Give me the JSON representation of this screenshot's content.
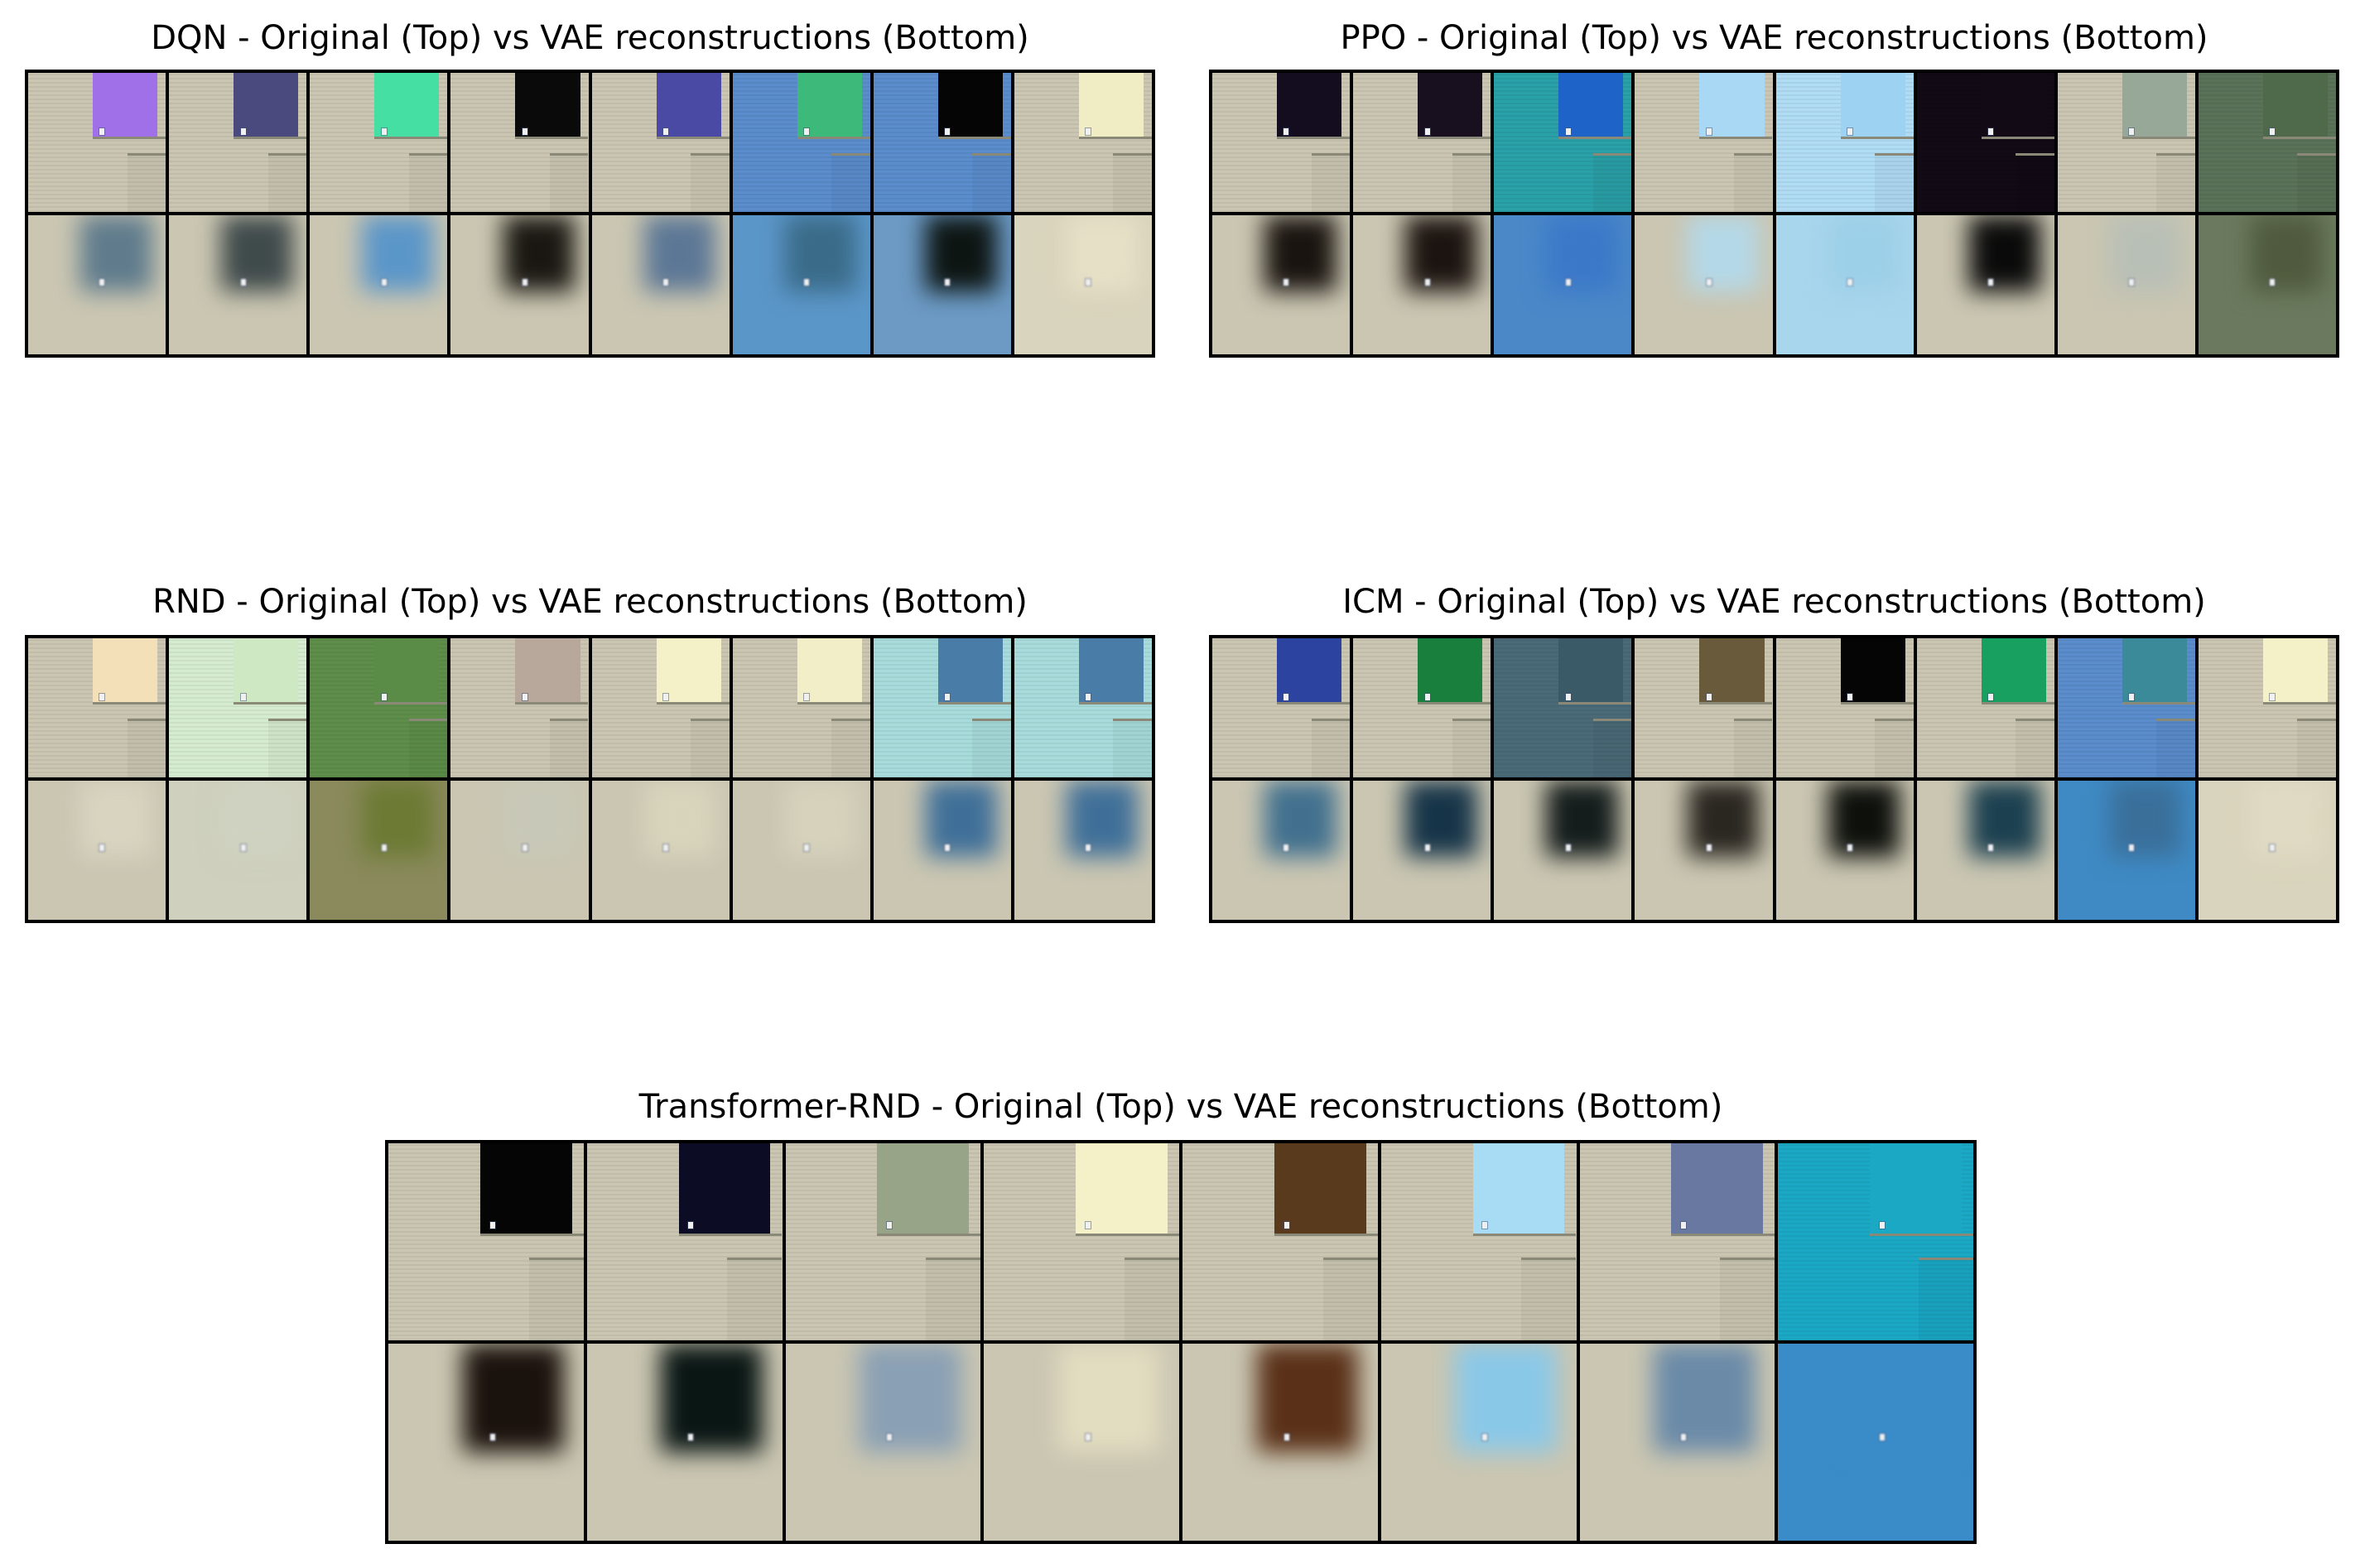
{
  "panels": [
    {
      "title": "DQN - Original (Top) vs VAE reconstructions (Bottom)",
      "original": [
        "#a070e8",
        "#4a4a7e",
        "#45dfa4",
        "#0a0a0a",
        "#4a4aa4",
        "#3dba7a",
        "#050505",
        "#f0ecc4"
      ],
      "recon": [
        "#5f7b8c",
        "#3f4a4b",
        "#5b96c8",
        "#1a1712",
        "#5c7795",
        "#3a6b88",
        "#0d1512",
        "#e6e0c6"
      ],
      "bg_orig": [
        "#cac6b2",
        "#cac6b2",
        "#cac6b2",
        "#cac6b2",
        "#cac6b2",
        "#5b8dcc",
        "#5b8dcc",
        "#cac6b2"
      ],
      "bg_recon": [
        "#cac6b2",
        "#cac6b2",
        "#cac6b2",
        "#cac6b2",
        "#cac6b2",
        "#5b96c8",
        "#6c9ac4",
        "#d9d4bd"
      ]
    },
    {
      "title": "PPO - Original (Top) vs VAE reconstructions (Bottom)",
      "original": [
        "#140d1f",
        "#18101f",
        "#1e64c8",
        "#a8d8f4",
        "#9ed2f2",
        "#120a14",
        "#98a898",
        "#4e6a4a"
      ],
      "recon": [
        "#1a1410",
        "#1c1410",
        "#3c78c8",
        "#b4d8e8",
        "#9ccfe8",
        "#0a0a0a",
        "#b8bfb6",
        "#505a3e"
      ],
      "bg_orig": [
        "#cac6b2",
        "#cac6b2",
        "#2aa0a8",
        "#cac6b2",
        "#b0dcf4",
        "#120a14",
        "#cac6b2",
        "#5a7258"
      ],
      "bg_recon": [
        "#cac6b2",
        "#cac6b2",
        "#4a88c8",
        "#cac6b2",
        "#a8d6ec",
        "#cac6b2",
        "#cac6b2",
        "#6b7a5e"
      ]
    },
    {
      "title": "RND - Original (Top) vs VAE reconstructions (Bottom)",
      "original": [
        "#f4e0b8",
        "#cfe8c4",
        "#5a8c48",
        "#b8a89c",
        "#f4f0c8",
        "#f2eec8",
        "#4a7ca8",
        "#4a7ca8"
      ],
      "recon": [
        "#d8d4c0",
        "#cfd2c0",
        "#6c7a34",
        "#c8c8b8",
        "#d8d4bc",
        "#d6d2bc",
        "#3f6f98",
        "#3f6f98"
      ],
      "bg_orig": [
        "#cac6b2",
        "#d6ecd0",
        "#5e8e4a",
        "#cac6b2",
        "#cac6b2",
        "#cac6b2",
        "#a8dcdc",
        "#a8dcdc"
      ],
      "bg_recon": [
        "#cac6b2",
        "#cfd0be",
        "#8a8a5c",
        "#cac6b2",
        "#cac6b2",
        "#cac6b2",
        "#cac6b2",
        "#cac6b2"
      ]
    },
    {
      "title": "ICM - Original (Top) vs VAE reconstructions (Bottom)",
      "original": [
        "#2c44a0",
        "#18803c",
        "#3a5a68",
        "#6a5a3c",
        "#050505",
        "#18a060",
        "#3a8a9a",
        "#f4f0c8"
      ],
      "recon": [
        "#41708e",
        "#163448",
        "#141c1c",
        "#2a2620",
        "#0e100c",
        "#1c4050",
        "#3a6f9a",
        "#e0dac4"
      ],
      "bg_orig": [
        "#cac6b2",
        "#cac6b2",
        "#4a6a78",
        "#cac6b2",
        "#cac6b2",
        "#cac6b2",
        "#5b8dcc",
        "#cac6b2"
      ],
      "bg_recon": [
        "#cac6b2",
        "#cac6b2",
        "#cac6b2",
        "#cac6b2",
        "#cac6b2",
        "#cac6b2",
        "#3f8ac4",
        "#d9d4bd"
      ]
    },
    {
      "title": "Transformer-RND - Original (Top) vs VAE reconstructions (Bottom)",
      "original": [
        "#050505",
        "#0c0c24",
        "#98a488",
        "#f4f0c8",
        "#5a3a1c",
        "#a8dcf4",
        "#6878a0",
        "#1aa8c4"
      ],
      "recon": [
        "#1a120c",
        "#0a1614",
        "#8aa0b4",
        "#e2dcc0",
        "#5a3018",
        "#8ac8e8",
        "#6a8aa8",
        "#3a8cc8"
      ],
      "bg_orig": [
        "#cac6b2",
        "#cac6b2",
        "#cac6b2",
        "#cac6b2",
        "#cac6b2",
        "#cac6b2",
        "#cac6b2",
        "#1aa8c4"
      ],
      "bg_recon": [
        "#cac6b2",
        "#cac6b2",
        "#cac6b2",
        "#cac6b2",
        "#cac6b2",
        "#cac6b2",
        "#cac6b2",
        "#3a8cc8"
      ]
    }
  ]
}
